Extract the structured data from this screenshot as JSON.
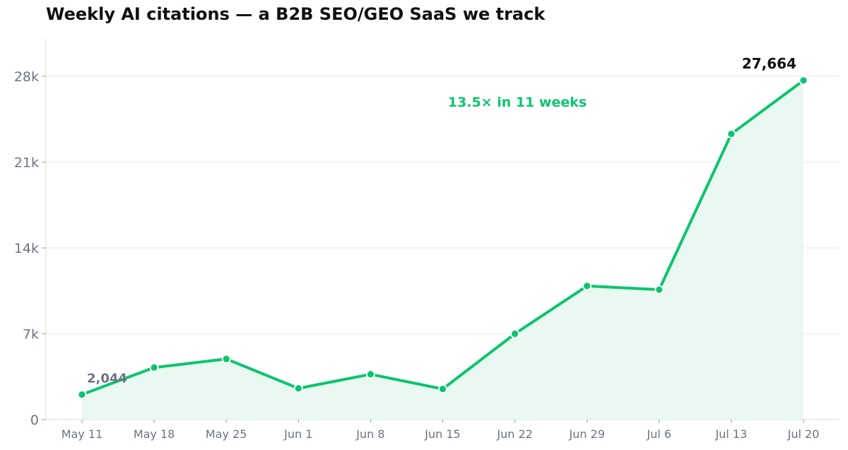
{
  "chart_data": {
    "type": "area",
    "title": "Weekly AI citations — a B2B SEO/GEO SaaS we track",
    "xlabel": "",
    "ylabel": "",
    "categories": [
      "May 11",
      "May 18",
      "May 25",
      "Jun 1",
      "Jun 8",
      "Jun 15",
      "Jun 22",
      "Jun 29",
      "Jul 6",
      "Jul 13",
      "Jul 20"
    ],
    "series": [
      {
        "values": [
          2044,
          4250,
          4950,
          2550,
          3700,
          2500,
          7000,
          10900,
          10600,
          23300,
          27664
        ]
      }
    ],
    "ylim": [
      0,
      31000
    ],
    "yticks": [
      0,
      7000,
      14000,
      21000,
      28000
    ],
    "ytick_labels": [
      "0",
      "7k",
      "14k",
      "21k",
      "28k"
    ],
    "grid": "horizontal",
    "colors": {
      "line": "#0cc46e",
      "fill": "#e9f8f0",
      "start_label": "#6b7384",
      "end_label": "#111111",
      "annotation": "#0cc46e",
      "tick_text": "#6b7384",
      "grid": "#e6e8ec"
    },
    "data_labels": {
      "start": "2,044",
      "end": "27,664"
    },
    "annotation": "13.5× in 11 weeks"
  }
}
